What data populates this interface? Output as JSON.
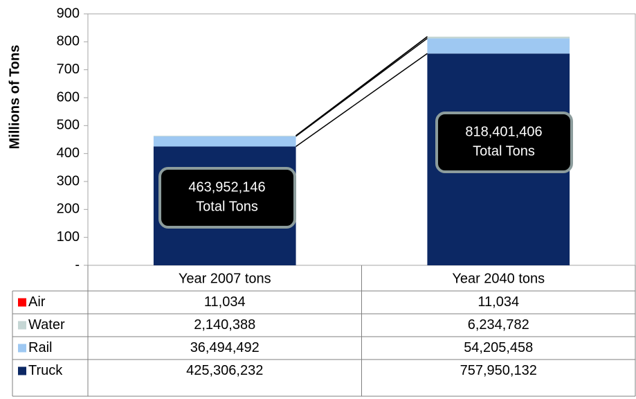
{
  "chart_data": {
    "type": "bar",
    "stacked": true,
    "y_label": "Millions of Tons",
    "categories": [
      "Year 2007 tons",
      "Year 2040 tons"
    ],
    "series": [
      {
        "name": "Truck",
        "color": "#0c2864",
        "values": [
          425.306232,
          757.950132
        ],
        "value_labels": [
          "425,306,232",
          "757,950,132"
        ]
      },
      {
        "name": "Rail",
        "color": "#9ec8f2",
        "values": [
          36.494492,
          54.205458
        ],
        "value_labels": [
          "36,494,492",
          "54,205,458"
        ]
      },
      {
        "name": "Water",
        "color": "#c5d6d4",
        "values": [
          2.140388,
          6.234782
        ],
        "value_labels": [
          "2,140,388",
          "6,234,782"
        ]
      },
      {
        "name": "Air",
        "color": "#ff0000",
        "values": [
          0.011034,
          0.011034
        ],
        "value_labels": [
          "11,034",
          "11,034"
        ]
      }
    ],
    "annotations": [
      {
        "lines": [
          "463,952,146",
          "Total Tons"
        ]
      },
      {
        "lines": [
          "818,401,406",
          "Total Tons"
        ]
      }
    ],
    "ylim": [
      0,
      900
    ],
    "yticks": [
      {
        "value": 0,
        "label": "-"
      },
      100,
      200,
      300,
      400,
      500,
      600,
      700,
      800,
      900
    ],
    "data_table": true
  }
}
